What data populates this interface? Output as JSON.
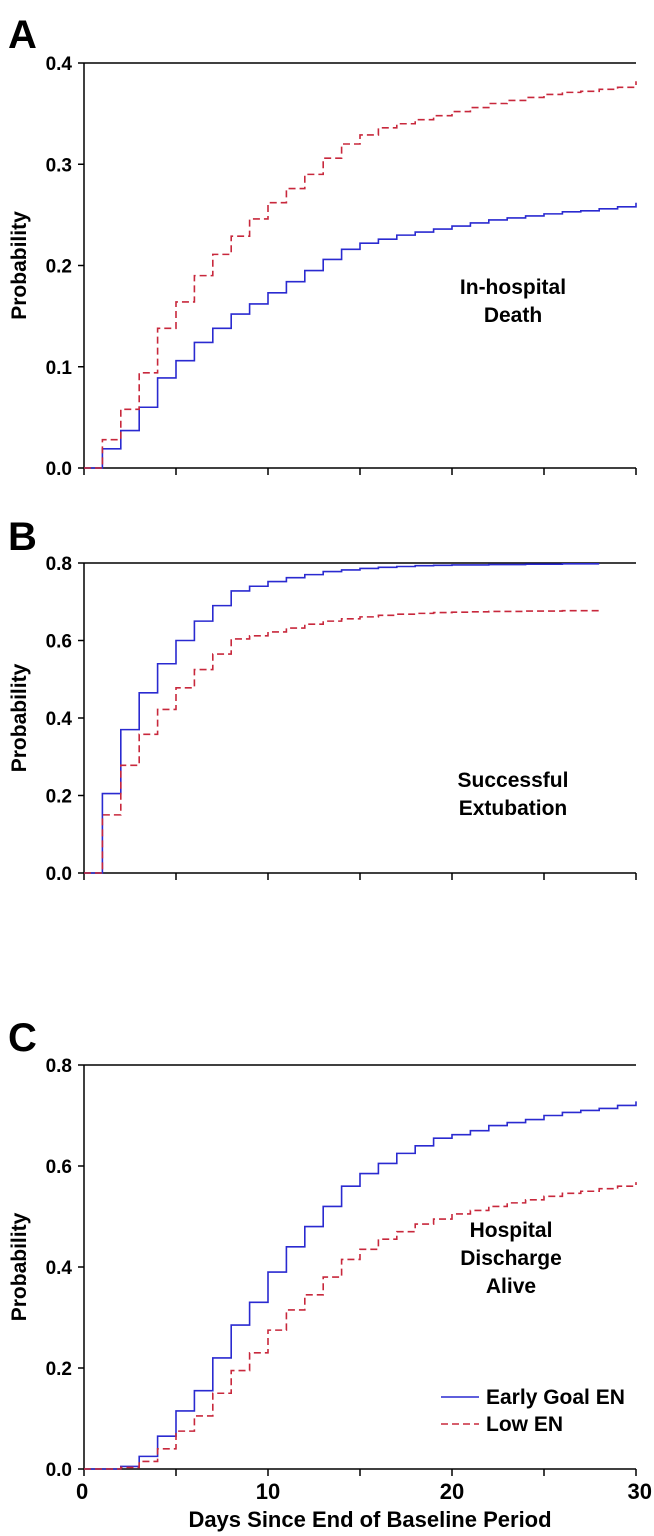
{
  "colors": {
    "early": "#2a2ad0",
    "low": "#c8283c",
    "axis": "#000000"
  },
  "shared": {
    "xlabel": "Days Since End of Baseline Period",
    "xticks": [
      0,
      10,
      20,
      30
    ],
    "xlim": [
      0,
      30
    ],
    "legend": {
      "early_label": "Early Goal EN",
      "low_label": "Low EN",
      "placement": "bottom-right of panel C"
    }
  },
  "chart_data": [
    {
      "panel": "A",
      "type": "line",
      "step": true,
      "ylabel": "Probability",
      "annotation": [
        "In-hospital",
        "Death"
      ],
      "ylim": [
        0,
        0.4
      ],
      "yticks": [
        "0.0",
        "0.1",
        "0.2",
        "0.3",
        "0.4"
      ],
      "x": [
        0,
        1,
        2,
        3,
        4,
        5,
        6,
        7,
        8,
        9,
        10,
        11,
        12,
        13,
        14,
        15,
        16,
        17,
        18,
        19,
        20,
        21,
        22,
        23,
        24,
        25,
        26,
        27,
        28,
        29,
        30
      ],
      "series": [
        {
          "name": "Early Goal EN",
          "style": "solid",
          "values": [
            0,
            0.019,
            0.037,
            0.06,
            0.089,
            0.106,
            0.124,
            0.138,
            0.152,
            0.162,
            0.173,
            0.184,
            0.195,
            0.206,
            0.216,
            0.222,
            0.226,
            0.23,
            0.233,
            0.236,
            0.239,
            0.242,
            0.245,
            0.247,
            0.249,
            0.251,
            0.253,
            0.254,
            0.256,
            0.258,
            0.262
          ]
        },
        {
          "name": "Low EN",
          "style": "dashed",
          "values": [
            0,
            0.028,
            0.058,
            0.094,
            0.138,
            0.164,
            0.19,
            0.211,
            0.229,
            0.246,
            0.262,
            0.276,
            0.29,
            0.306,
            0.32,
            0.329,
            0.336,
            0.34,
            0.344,
            0.348,
            0.352,
            0.356,
            0.36,
            0.363,
            0.366,
            0.369,
            0.371,
            0.372,
            0.374,
            0.376,
            0.382
          ]
        }
      ]
    },
    {
      "panel": "B",
      "type": "line",
      "step": true,
      "ylabel": "Probability",
      "annotation": [
        "Successful",
        "Extubation"
      ],
      "ylim": [
        0,
        0.8
      ],
      "yticks": [
        "0.0",
        "0.2",
        "0.4",
        "0.6",
        "0.8"
      ],
      "x": [
        0,
        1,
        2,
        3,
        4,
        5,
        6,
        7,
        8,
        9,
        10,
        11,
        12,
        13,
        14,
        15,
        16,
        17,
        18,
        19,
        20,
        21,
        22,
        23,
        24,
        25,
        26,
        27,
        28
      ],
      "series": [
        {
          "name": "Early Goal EN",
          "style": "solid",
          "values": [
            0,
            0.205,
            0.37,
            0.465,
            0.54,
            0.6,
            0.65,
            0.69,
            0.728,
            0.74,
            0.752,
            0.762,
            0.77,
            0.778,
            0.782,
            0.786,
            0.789,
            0.791,
            0.793,
            0.794,
            0.795,
            0.795,
            0.796,
            0.796,
            0.797,
            0.797,
            0.798,
            0.798,
            0.798
          ]
        },
        {
          "name": "Low EN",
          "style": "dashed",
          "values": [
            0,
            0.15,
            0.278,
            0.358,
            0.422,
            0.478,
            0.525,
            0.565,
            0.604,
            0.612,
            0.622,
            0.632,
            0.642,
            0.65,
            0.656,
            0.661,
            0.665,
            0.668,
            0.67,
            0.672,
            0.673,
            0.674,
            0.675,
            0.675,
            0.676,
            0.676,
            0.677,
            0.677,
            0.677
          ]
        }
      ]
    },
    {
      "panel": "C",
      "type": "line",
      "step": true,
      "ylabel": "Probability",
      "annotation": [
        "Hospital",
        "Discharge",
        "Alive"
      ],
      "ylim": [
        0,
        0.8
      ],
      "yticks": [
        "0.0",
        "0.2",
        "0.4",
        "0.6",
        "0.8"
      ],
      "x": [
        0,
        1,
        2,
        3,
        4,
        5,
        6,
        7,
        8,
        9,
        10,
        11,
        12,
        13,
        14,
        15,
        16,
        17,
        18,
        19,
        20,
        21,
        22,
        23,
        24,
        25,
        26,
        27,
        28,
        29,
        30
      ],
      "series": [
        {
          "name": "Early Goal EN",
          "style": "solid",
          "values": [
            0,
            0.0,
            0.005,
            0.025,
            0.065,
            0.115,
            0.155,
            0.22,
            0.285,
            0.33,
            0.39,
            0.44,
            0.48,
            0.52,
            0.56,
            0.585,
            0.605,
            0.625,
            0.64,
            0.655,
            0.662,
            0.67,
            0.68,
            0.686,
            0.692,
            0.7,
            0.706,
            0.71,
            0.714,
            0.72,
            0.728
          ]
        },
        {
          "name": "Low EN",
          "style": "dashed",
          "values": [
            0,
            0.0,
            0.003,
            0.015,
            0.04,
            0.075,
            0.105,
            0.15,
            0.195,
            0.23,
            0.275,
            0.315,
            0.345,
            0.38,
            0.415,
            0.435,
            0.455,
            0.47,
            0.485,
            0.495,
            0.505,
            0.512,
            0.52,
            0.527,
            0.533,
            0.54,
            0.546,
            0.55,
            0.555,
            0.56,
            0.568
          ]
        }
      ]
    }
  ]
}
